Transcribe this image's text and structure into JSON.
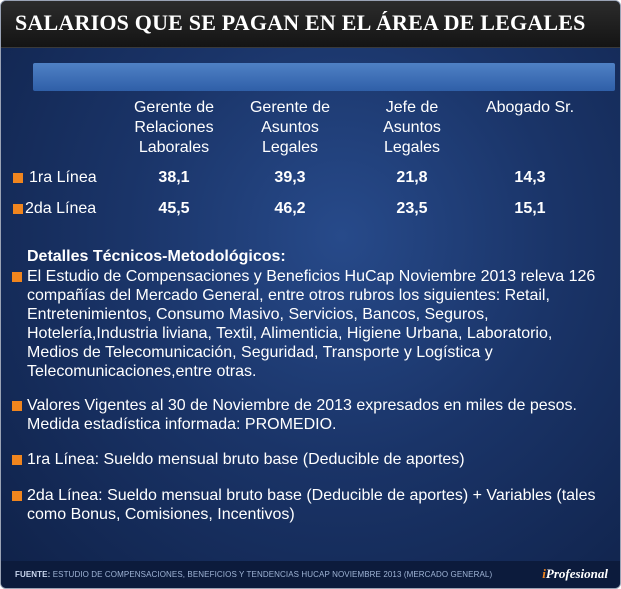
{
  "title": "SALARIOS QUE SE PAGAN EN EL ÁREA DE LEGALES",
  "table": {
    "columns": [
      "Gerente de\nRelaciones\nLaborales",
      "Gerente de\nAsuntos\nLegales",
      "Jefe de\nAsuntos\nLegales",
      "Abogado Sr."
    ],
    "rows": [
      {
        "label": "1ra Línea",
        "values": [
          "38,1",
          "39,3",
          "21,8",
          "14,3"
        ]
      },
      {
        "label": "2da Línea",
        "values": [
          "45,5",
          "46,2",
          "23,5",
          "15,1"
        ]
      }
    ]
  },
  "details": {
    "title": "Detalles Técnicos-Metodológicos:",
    "notes": [
      "El Estudio de Compensaciones y Beneficios HuCap Noviembre 2013 releva 126 compañías del Mercado General, entre otros rubros los siguientes: Retail, Entretenimientos, Consumo Masivo, Servicios, Bancos, Seguros, Hotelería,Industria liviana, Textil, Alimenticia, Higiene Urbana, Laboratorio, Medios de Telecomunicación, Seguridad, Transporte y Logística y Telecomunicaciones,entre otras.",
      "Valores Vigentes al 30 de Noviembre de 2013 expresados en miles de pesos. Medida estadística informada: PROMEDIO.",
      "1ra Línea: Sueldo mensual bruto base (Deducible de aportes)",
      "2da Línea: Sueldo mensual bruto base (Deducible de aportes) + Variables (tales como Bonus, Comisiones, Incentivos)"
    ]
  },
  "footer": {
    "source_label": "FUENTE:",
    "source_text": "ESTUDIO DE COMPENSACIONES, BENEFICIOS Y TENDENCIAS HUCAP NOVIEMBRE 2013 (MERCADO GENERAL)",
    "logo_prefix": "i",
    "logo_text": "Profesional"
  },
  "colors": {
    "background": "#1a3468",
    "title_bar": "#141414",
    "header_strip": "#3f6fb8",
    "bullet": "#f0851e"
  }
}
